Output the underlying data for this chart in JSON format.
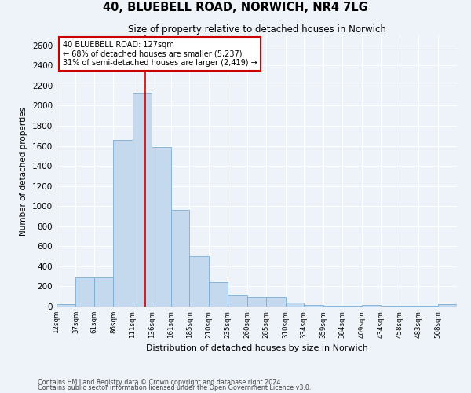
{
  "title": "40, BLUEBELL ROAD, NORWICH, NR4 7LG",
  "subtitle": "Size of property relative to detached houses in Norwich",
  "xlabel": "Distribution of detached houses by size in Norwich",
  "ylabel": "Number of detached properties",
  "bar_color": "#c5d9ee",
  "bar_edge_color": "#7aaed4",
  "background_color": "#eef2f9",
  "grid_color": "#ffffff",
  "annotation_box_color": "#ffffff",
  "annotation_border_color": "#cc0000",
  "vline_color": "#cc0000",
  "vline_x": 127,
  "annotation_line1": "40 BLUEBELL ROAD: 127sqm",
  "annotation_line2": "← 68% of detached houses are smaller (5,237)",
  "annotation_line3": "31% of semi-detached houses are larger (2,419) →",
  "footer_line1": "Contains HM Land Registry data © Crown copyright and database right 2024.",
  "footer_line2": "Contains public sector information licensed under the Open Government Licence v3.0.",
  "bin_labels": [
    "12sqm",
    "37sqm",
    "61sqm",
    "86sqm",
    "111sqm",
    "136sqm",
    "161sqm",
    "185sqm",
    "210sqm",
    "235sqm",
    "260sqm",
    "285sqm",
    "310sqm",
    "334sqm",
    "359sqm",
    "384sqm",
    "409sqm",
    "434sqm",
    "458sqm",
    "483sqm",
    "508sqm"
  ],
  "bin_edges": [
    12,
    37,
    61,
    86,
    111,
    136,
    161,
    185,
    210,
    235,
    260,
    285,
    310,
    334,
    359,
    384,
    409,
    434,
    458,
    483,
    508
  ],
  "bar_heights": [
    20,
    290,
    290,
    1660,
    2130,
    1590,
    960,
    500,
    245,
    120,
    95,
    95,
    40,
    15,
    10,
    5,
    15,
    5,
    5,
    5,
    20
  ],
  "ylim": [
    0,
    2700
  ],
  "yticks": [
    0,
    200,
    400,
    600,
    800,
    1000,
    1200,
    1400,
    1600,
    1800,
    2000,
    2200,
    2400,
    2600
  ]
}
